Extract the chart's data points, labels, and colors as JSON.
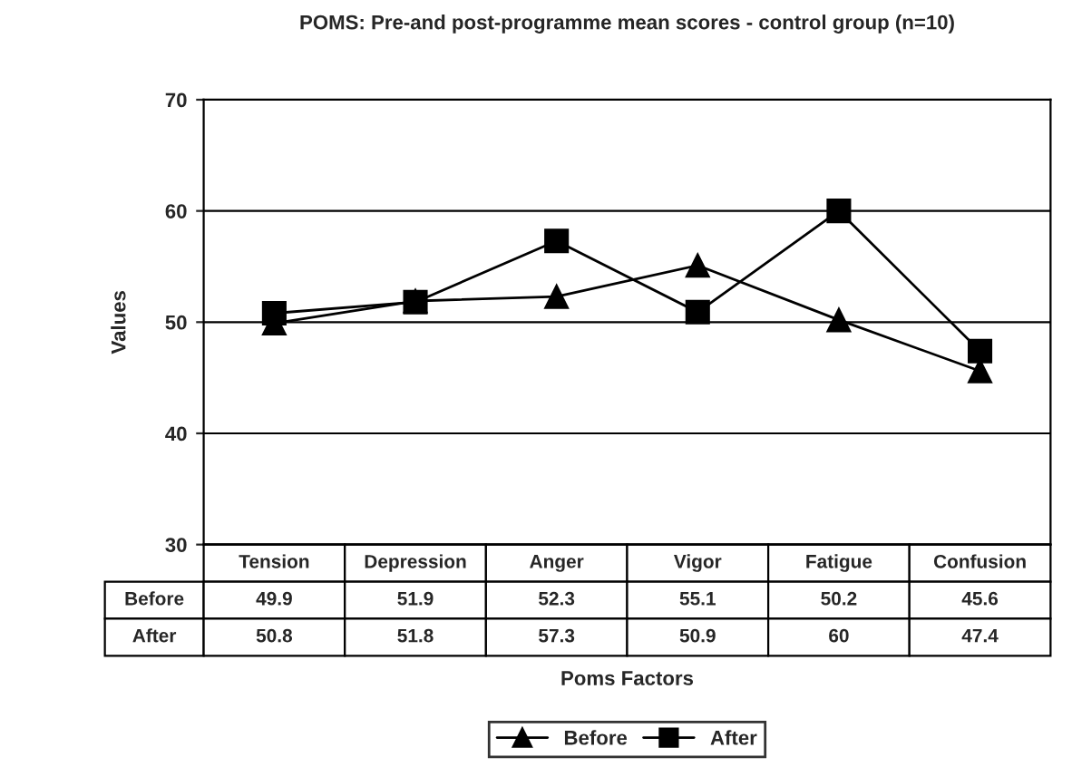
{
  "chart_data": {
    "type": "line",
    "title": "POMS: Pre-and post-programme mean scores - control group (n=10)",
    "categories": [
      "Tension",
      "Depression",
      "Anger",
      "Vigor",
      "Fatigue",
      "Confusion"
    ],
    "series": [
      {
        "name": "Before",
        "color": "#000000",
        "marker": "triangle",
        "values": [
          49.9,
          51.9,
          52.3,
          55.1,
          50.2,
          45.6
        ]
      },
      {
        "name": "After",
        "color": "#000000",
        "marker": "square",
        "values": [
          50.8,
          51.8,
          57.3,
          50.9,
          60,
          47.4
        ]
      }
    ],
    "xlabel": "Poms Factors",
    "ylabel": "Values",
    "ylim": [
      30,
      70
    ],
    "yticks": [
      30,
      40,
      50,
      60,
      70
    ],
    "grid": "y",
    "legend": "bottom",
    "data_labels": true,
    "line_style": "solid"
  }
}
